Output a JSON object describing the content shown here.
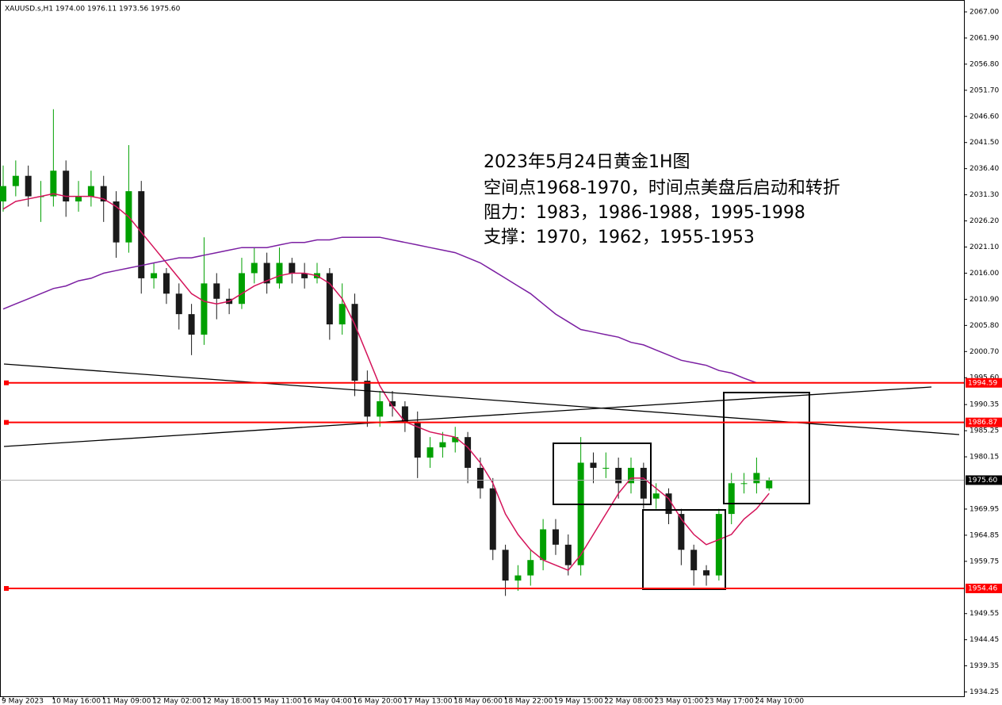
{
  "chart_data": {
    "type": "candlestick",
    "header": "XAUUSD.s,H1  1974.00 1976.11 1973.56 1975.60",
    "annotations": [
      "2023年5月24日黄金1H图",
      "空间点1968-1970，时间点美盘后启动和转折",
      "阻力：1983，1986-1988，1995-1998",
      "支撑：1970，1962，1955-1953"
    ],
    "categories": [
      "9 May 2023",
      null,
      null,
      null,
      "10 May 16:00",
      null,
      null,
      null,
      "11 May 09:00",
      null,
      null,
      null,
      "12 May 02:00",
      null,
      null,
      null,
      "12 May 18:00",
      null,
      null,
      null,
      "15 May 11:00",
      null,
      null,
      null,
      "16 May 04:00",
      null,
      null,
      null,
      "16 May 20:00",
      null,
      null,
      null,
      "17 May 13:00",
      null,
      null,
      null,
      "18 May 06:00",
      null,
      null,
      null,
      "18 May 22:00",
      null,
      null,
      null,
      "19 May 15:00",
      null,
      null,
      null,
      "22 May 08:00",
      null,
      null,
      null,
      "23 May 01:00",
      null,
      null,
      null,
      "23 May 17:00",
      null,
      null,
      null,
      "24 May 10:00",
      null
    ],
    "open": [
      2030,
      2033,
      2035,
      2031,
      2031,
      2036,
      2030,
      2031,
      2033,
      2030,
      2022,
      2032,
      2015,
      2016,
      2012,
      2008,
      2004,
      2014,
      2011,
      2010,
      2016,
      2018,
      2014,
      2018,
      2016,
      2015,
      2016,
      2006,
      2010,
      1995,
      1988,
      1991,
      1990,
      1987,
      1980,
      1982,
      1983,
      1984,
      1978,
      1974,
      1962,
      1956,
      1957,
      1960,
      1966,
      1963,
      1959,
      1979,
      1978,
      1978,
      1975,
      1978,
      1972,
      1973,
      1969,
      1962,
      1958,
      1957,
      1969,
      1975,
      1975,
      1974
    ],
    "high": [
      2037,
      2038,
      2037,
      2034,
      2048,
      2038,
      2034,
      2036,
      2035,
      2032,
      2041,
      2034,
      2018,
      2017,
      2014,
      2010,
      2023,
      2016,
      2013,
      2019,
      2021,
      2020,
      2021,
      2019,
      2018,
      2018,
      2017,
      2014,
      2012,
      1997,
      1993,
      1993,
      1991,
      1989,
      1984,
      1985,
      1986,
      1985,
      1980,
      1976,
      1963,
      1959,
      1962,
      1968,
      1968,
      1965,
      1984,
      1981,
      1981,
      1980,
      1980,
      1979,
      1975,
      1974,
      1970,
      1963,
      1959,
      1970,
      1977,
      1977,
      1980,
      1976.11
    ],
    "low": [
      2028,
      2031,
      2029,
      2026,
      2029,
      2027,
      2028,
      2029,
      2026,
      2019,
      2020,
      2012,
      2013,
      2010,
      2005,
      2000,
      2002,
      2007,
      2008,
      2009,
      2014,
      2012,
      2013,
      2014,
      2013,
      2014,
      2003,
      2004,
      1992,
      1986,
      1986,
      1988,
      1985,
      1976,
      1978,
      1980,
      1981,
      1975,
      1972,
      1960,
      1953,
      1954,
      1955,
      1958,
      1961,
      1957,
      1957,
      1975,
      1976,
      1972,
      1973,
      1970,
      1970,
      1967,
      1959,
      1955,
      1955,
      1956,
      1967,
      1973,
      1973,
      1973.56
    ],
    "close": [
      2033,
      2035,
      2031,
      2031,
      2036,
      2030,
      2031,
      2033,
      2030,
      2022,
      2032,
      2015,
      2016,
      2012,
      2008,
      2004,
      2014,
      2011,
      2010,
      2016,
      2018,
      2014,
      2018,
      2016,
      2015,
      2016,
      2006,
      2010,
      1995,
      1988,
      1991,
      1990,
      1987,
      1980,
      1982,
      1983,
      1984,
      1978,
      1974,
      1962,
      1956,
      1957,
      1960,
      1966,
      1963,
      1959,
      1979,
      1978,
      1978,
      1975,
      1978,
      1972,
      1973,
      1969,
      1962,
      1958,
      1957,
      1969,
      1975,
      1975,
      1977,
      1975.6
    ],
    "up_color": "#00a000",
    "down_color": "#1a1a1a",
    "ma_lines": [
      {
        "color": "#d4145a",
        "values": [
          2028.5,
          2030,
          2030.5,
          2031,
          2031.5,
          2031,
          2031,
          2031,
          2030.5,
          2029,
          2027,
          2024,
          2021,
          2018,
          2015,
          2012,
          2010.5,
          2010,
          2010.5,
          2012,
          2013.5,
          2014.5,
          2015.5,
          2016,
          2016,
          2015.5,
          2014,
          2011,
          2006,
          2000,
          1994,
          1990,
          1987,
          1986,
          1985,
          1984.5,
          1984,
          1982,
          1979,
          1975,
          1969,
          1965,
          1962,
          1960,
          1959,
          1958,
          1961,
          1965,
          1969,
          1973,
          1976,
          1976,
          1974,
          1972,
          1968,
          1965,
          1963,
          1964,
          1965,
          1968,
          1970,
          1973
        ]
      },
      {
        "color": "#7b1fa2",
        "values": [
          2009,
          2010,
          2011,
          2012,
          2013,
          2013.5,
          2014.5,
          2015,
          2016,
          2016.5,
          2017,
          2017.5,
          2018,
          2018.5,
          2019,
          2019,
          2019.5,
          2020,
          2020.5,
          2021,
          2021,
          2021,
          2021.5,
          2022,
          2022,
          2022.5,
          2022.5,
          2023,
          2023,
          2023,
          2023,
          2022.5,
          2022,
          2021.5,
          2021,
          2020.5,
          2020,
          2019,
          2018,
          2016.5,
          2015,
          2013.5,
          2012,
          2010,
          2008,
          2006.5,
          2005,
          2004.5,
          2004,
          2003.5,
          2002.5,
          2002,
          2001,
          2000,
          1999,
          1998.5,
          1998,
          1997,
          1996.5,
          1995.5,
          1994.6,
          null
        ]
      }
    ],
    "levels": [
      1994.59,
      1986.87,
      1954.46
    ],
    "level_color": "#ff0000",
    "price_line": {
      "value": 1975.6,
      "label": "1975.60"
    },
    "ylim": [
      1933.41,
      2069.32
    ],
    "yticks": [
      {
        "value": 2067,
        "label": "2067.00"
      },
      {
        "value": 2061.9,
        "label": "2061.90"
      },
      {
        "value": 2056.8,
        "label": "2056.80"
      },
      {
        "value": 2051.7,
        "label": "2051.70"
      },
      {
        "value": 2046.6,
        "label": "2046.60"
      },
      {
        "value": 2041.5,
        "label": "2041.50"
      },
      {
        "value": 2036.4,
        "label": "2036.40"
      },
      {
        "value": 2031.3,
        "label": "2031.30"
      },
      {
        "value": 2026.2,
        "label": "2026.20"
      },
      {
        "value": 2021.1,
        "label": "2021.10"
      },
      {
        "value": 2016,
        "label": "2016.00"
      },
      {
        "value": 2010.9,
        "label": "2010.90"
      },
      {
        "value": 2005.8,
        "label": "2005.80"
      },
      {
        "value": 2000.7,
        "label": "2000.70"
      },
      {
        "value": 1995.6,
        "label": "1995.60"
      },
      {
        "value": 1990.35,
        "label": "1990.35"
      },
      {
        "value": 1985.25,
        "label": "1985.25"
      },
      {
        "value": 1980.15,
        "label": "1980.15"
      },
      {
        "value": 1969.95,
        "label": "1969.95"
      },
      {
        "value": 1964.85,
        "label": "1964.85"
      },
      {
        "value": 1959.75,
        "label": "1959.75"
      },
      {
        "value": 1949.55,
        "label": "1949.55"
      },
      {
        "value": 1944.45,
        "label": "1944.45"
      },
      {
        "value": 1939.35,
        "label": "1939.35"
      },
      {
        "value": 1934.25,
        "label": "1934.25"
      }
    ]
  }
}
